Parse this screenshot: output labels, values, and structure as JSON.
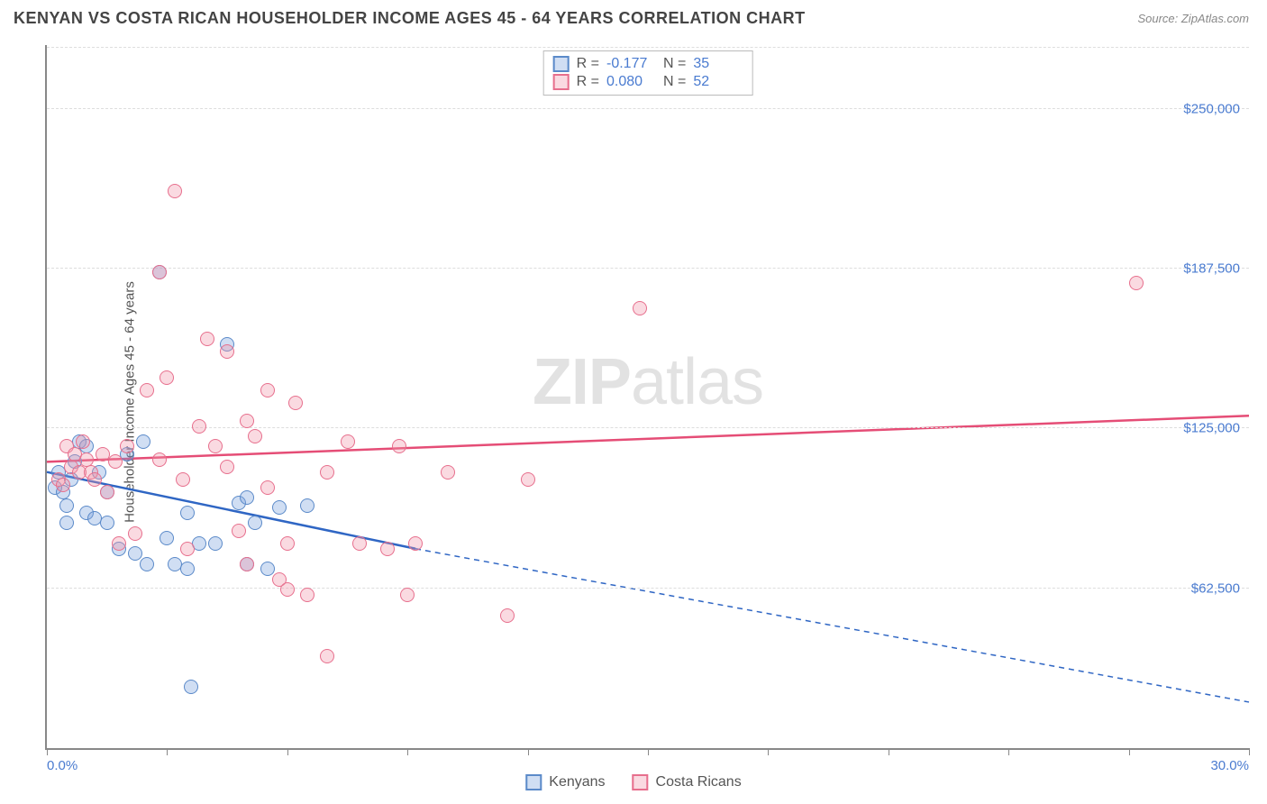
{
  "header": {
    "title": "KENYAN VS COSTA RICAN HOUSEHOLDER INCOME AGES 45 - 64 YEARS CORRELATION CHART",
    "source": "Source: ZipAtlas.com"
  },
  "chart": {
    "type": "scatter",
    "ylabel": "Householder Income Ages 45 - 64 years",
    "xlim": [
      0,
      30
    ],
    "ylim": [
      0,
      275000
    ],
    "xlabel_min": "0.0%",
    "xlabel_max": "30.0%",
    "ytick_values": [
      62500,
      125000,
      187500,
      250000
    ],
    "ytick_labels": [
      "$62,500",
      "$125,000",
      "$187,500",
      "$250,000"
    ],
    "xtick_positions": [
      0,
      3,
      6,
      9,
      12,
      15,
      18,
      21,
      24,
      27,
      30
    ],
    "grid_color": "#dddddd",
    "axis_color": "#888888",
    "background_color": "#ffffff",
    "tick_label_color": "#4a7bd0",
    "watermark": {
      "text_bold": "ZIP",
      "text_light": "atlas"
    },
    "marker_radius": 8,
    "marker_border_width": 1.5,
    "series": [
      {
        "name": "Kenyans",
        "fill": "rgba(120,160,220,0.35)",
        "stroke": "#5b8ac9",
        "r_value": "-0.177",
        "n_value": "35",
        "trend": {
          "color": "#2f66c4",
          "width": 2.5,
          "start": [
            0,
            108000
          ],
          "solid_end": [
            9.2,
            78000
          ],
          "dash_end": [
            30,
            18000
          ]
        },
        "points": [
          [
            0.2,
            102000
          ],
          [
            0.3,
            108000
          ],
          [
            0.4,
            100000
          ],
          [
            0.5,
            95000
          ],
          [
            0.6,
            105000
          ],
          [
            0.7,
            112000
          ],
          [
            0.5,
            88000
          ],
          [
            0.8,
            120000
          ],
          [
            1.0,
            118000
          ],
          [
            1.0,
            92000
          ],
          [
            1.2,
            90000
          ],
          [
            1.3,
            108000
          ],
          [
            1.5,
            100000
          ],
          [
            1.5,
            88000
          ],
          [
            1.8,
            78000
          ],
          [
            2.0,
            115000
          ],
          [
            2.2,
            76000
          ],
          [
            2.4,
            120000
          ],
          [
            2.5,
            72000
          ],
          [
            2.8,
            186000
          ],
          [
            3.0,
            82000
          ],
          [
            3.2,
            72000
          ],
          [
            3.5,
            92000
          ],
          [
            3.5,
            70000
          ],
          [
            3.8,
            80000
          ],
          [
            3.6,
            24000
          ],
          [
            4.5,
            158000
          ],
          [
            4.8,
            96000
          ],
          [
            5.0,
            98000
          ],
          [
            5.0,
            72000
          ],
          [
            5.2,
            88000
          ],
          [
            5.5,
            70000
          ],
          [
            5.8,
            94000
          ],
          [
            6.5,
            95000
          ],
          [
            4.2,
            80000
          ]
        ]
      },
      {
        "name": "Costa Ricans",
        "fill": "rgba(240,150,170,0.35)",
        "stroke": "#e76f8d",
        "r_value": "0.080",
        "n_value": "52",
        "trend": {
          "color": "#e54d76",
          "width": 2.5,
          "start": [
            0,
            112000
          ],
          "solid_end": [
            30,
            130000
          ],
          "dash_end": null
        },
        "points": [
          [
            0.3,
            105000
          ],
          [
            0.4,
            103000
          ],
          [
            0.5,
            118000
          ],
          [
            0.6,
            110000
          ],
          [
            0.7,
            115000
          ],
          [
            0.8,
            108000
          ],
          [
            0.9,
            120000
          ],
          [
            1.0,
            113000
          ],
          [
            1.1,
            108000
          ],
          [
            1.2,
            105000
          ],
          [
            1.4,
            115000
          ],
          [
            1.5,
            100000
          ],
          [
            1.7,
            112000
          ],
          [
            1.8,
            80000
          ],
          [
            2.0,
            118000
          ],
          [
            2.2,
            84000
          ],
          [
            2.5,
            140000
          ],
          [
            2.8,
            113000
          ],
          [
            2.8,
            186000
          ],
          [
            3.0,
            145000
          ],
          [
            3.2,
            218000
          ],
          [
            3.4,
            105000
          ],
          [
            3.5,
            78000
          ],
          [
            3.8,
            126000
          ],
          [
            4.0,
            160000
          ],
          [
            4.2,
            118000
          ],
          [
            4.5,
            110000
          ],
          [
            4.5,
            155000
          ],
          [
            4.8,
            85000
          ],
          [
            5.0,
            128000
          ],
          [
            5.2,
            122000
          ],
          [
            5.5,
            102000
          ],
          [
            5.8,
            66000
          ],
          [
            6.0,
            80000
          ],
          [
            6.2,
            135000
          ],
          [
            6.5,
            60000
          ],
          [
            7.0,
            108000
          ],
          [
            7.0,
            36000
          ],
          [
            7.5,
            120000
          ],
          [
            7.8,
            80000
          ],
          [
            8.5,
            78000
          ],
          [
            8.8,
            118000
          ],
          [
            9.0,
            60000
          ],
          [
            9.2,
            80000
          ],
          [
            10.0,
            108000
          ],
          [
            11.5,
            52000
          ],
          [
            12.0,
            105000
          ],
          [
            14.8,
            172000
          ],
          [
            27.2,
            182000
          ],
          [
            5.0,
            72000
          ],
          [
            6.0,
            62000
          ],
          [
            5.5,
            140000
          ]
        ]
      }
    ]
  },
  "stats_box": {
    "r_label": "R =",
    "n_label": "N ="
  },
  "bottom_legend": {
    "items": [
      "Kenyans",
      "Costa Ricans"
    ]
  }
}
